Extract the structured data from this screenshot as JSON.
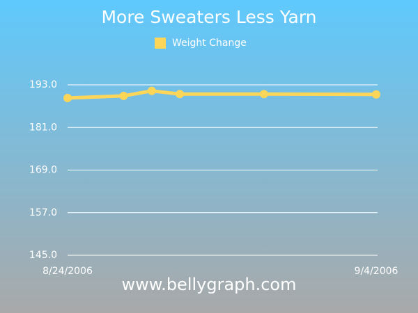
{
  "chart_data": {
    "type": "line",
    "title": "More Sweaters Less Yarn",
    "footer": "www.bellygraph.com",
    "x": [
      "2006-08-24",
      "2006-08-26",
      "2006-08-27",
      "2006-08-28",
      "2006-08-31",
      "2006-09-04"
    ],
    "xlim": [
      "2006-08-24",
      "2006-09-04"
    ],
    "xticks": [
      {
        "value": "2006-08-24",
        "label": "8/24/2006"
      },
      {
        "value": "2006-09-04",
        "label": "9/4/2006"
      }
    ],
    "series": [
      {
        "name": "Weight Change",
        "color": "#fcd659",
        "values": [
          189.3,
          189.9,
          191.3,
          190.4,
          190.4,
          190.3
        ]
      }
    ],
    "ylim": [
      145,
      193
    ],
    "yticks": [
      {
        "value": 145,
        "label": "145.0"
      },
      {
        "value": 157,
        "label": "157.0"
      },
      {
        "value": 169,
        "label": "169.0"
      },
      {
        "value": 181,
        "label": "181.0"
      },
      {
        "value": 193,
        "label": "193.0"
      }
    ],
    "grid": true,
    "legend": "top"
  }
}
